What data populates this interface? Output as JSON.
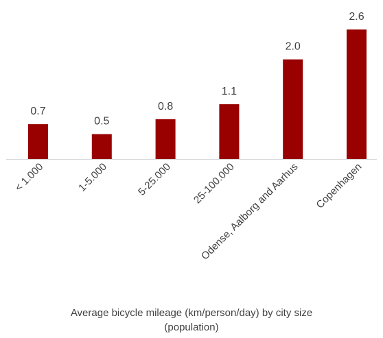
{
  "chart_data": {
    "type": "bar",
    "categories": [
      "< 1.000",
      "1-5.000",
      "5-25.000",
      "25-100.000",
      "Odense, Aalborg and Aarhus",
      "Copenhagen"
    ],
    "values": [
      0.7,
      0.5,
      0.8,
      1.1,
      2.0,
      2.6
    ],
    "data_labels": [
      "0.7",
      "0.5",
      "0.8",
      "1.1",
      "2.0",
      "2.6"
    ],
    "title": "",
    "xlabel_lines": [
      "Average bicycle mileage (km/person/day) by city size",
      "(population)"
    ],
    "ylabel": "",
    "ylim": [
      0,
      2.6
    ],
    "grid": false,
    "legend": "none",
    "bar_color": "#990000"
  }
}
